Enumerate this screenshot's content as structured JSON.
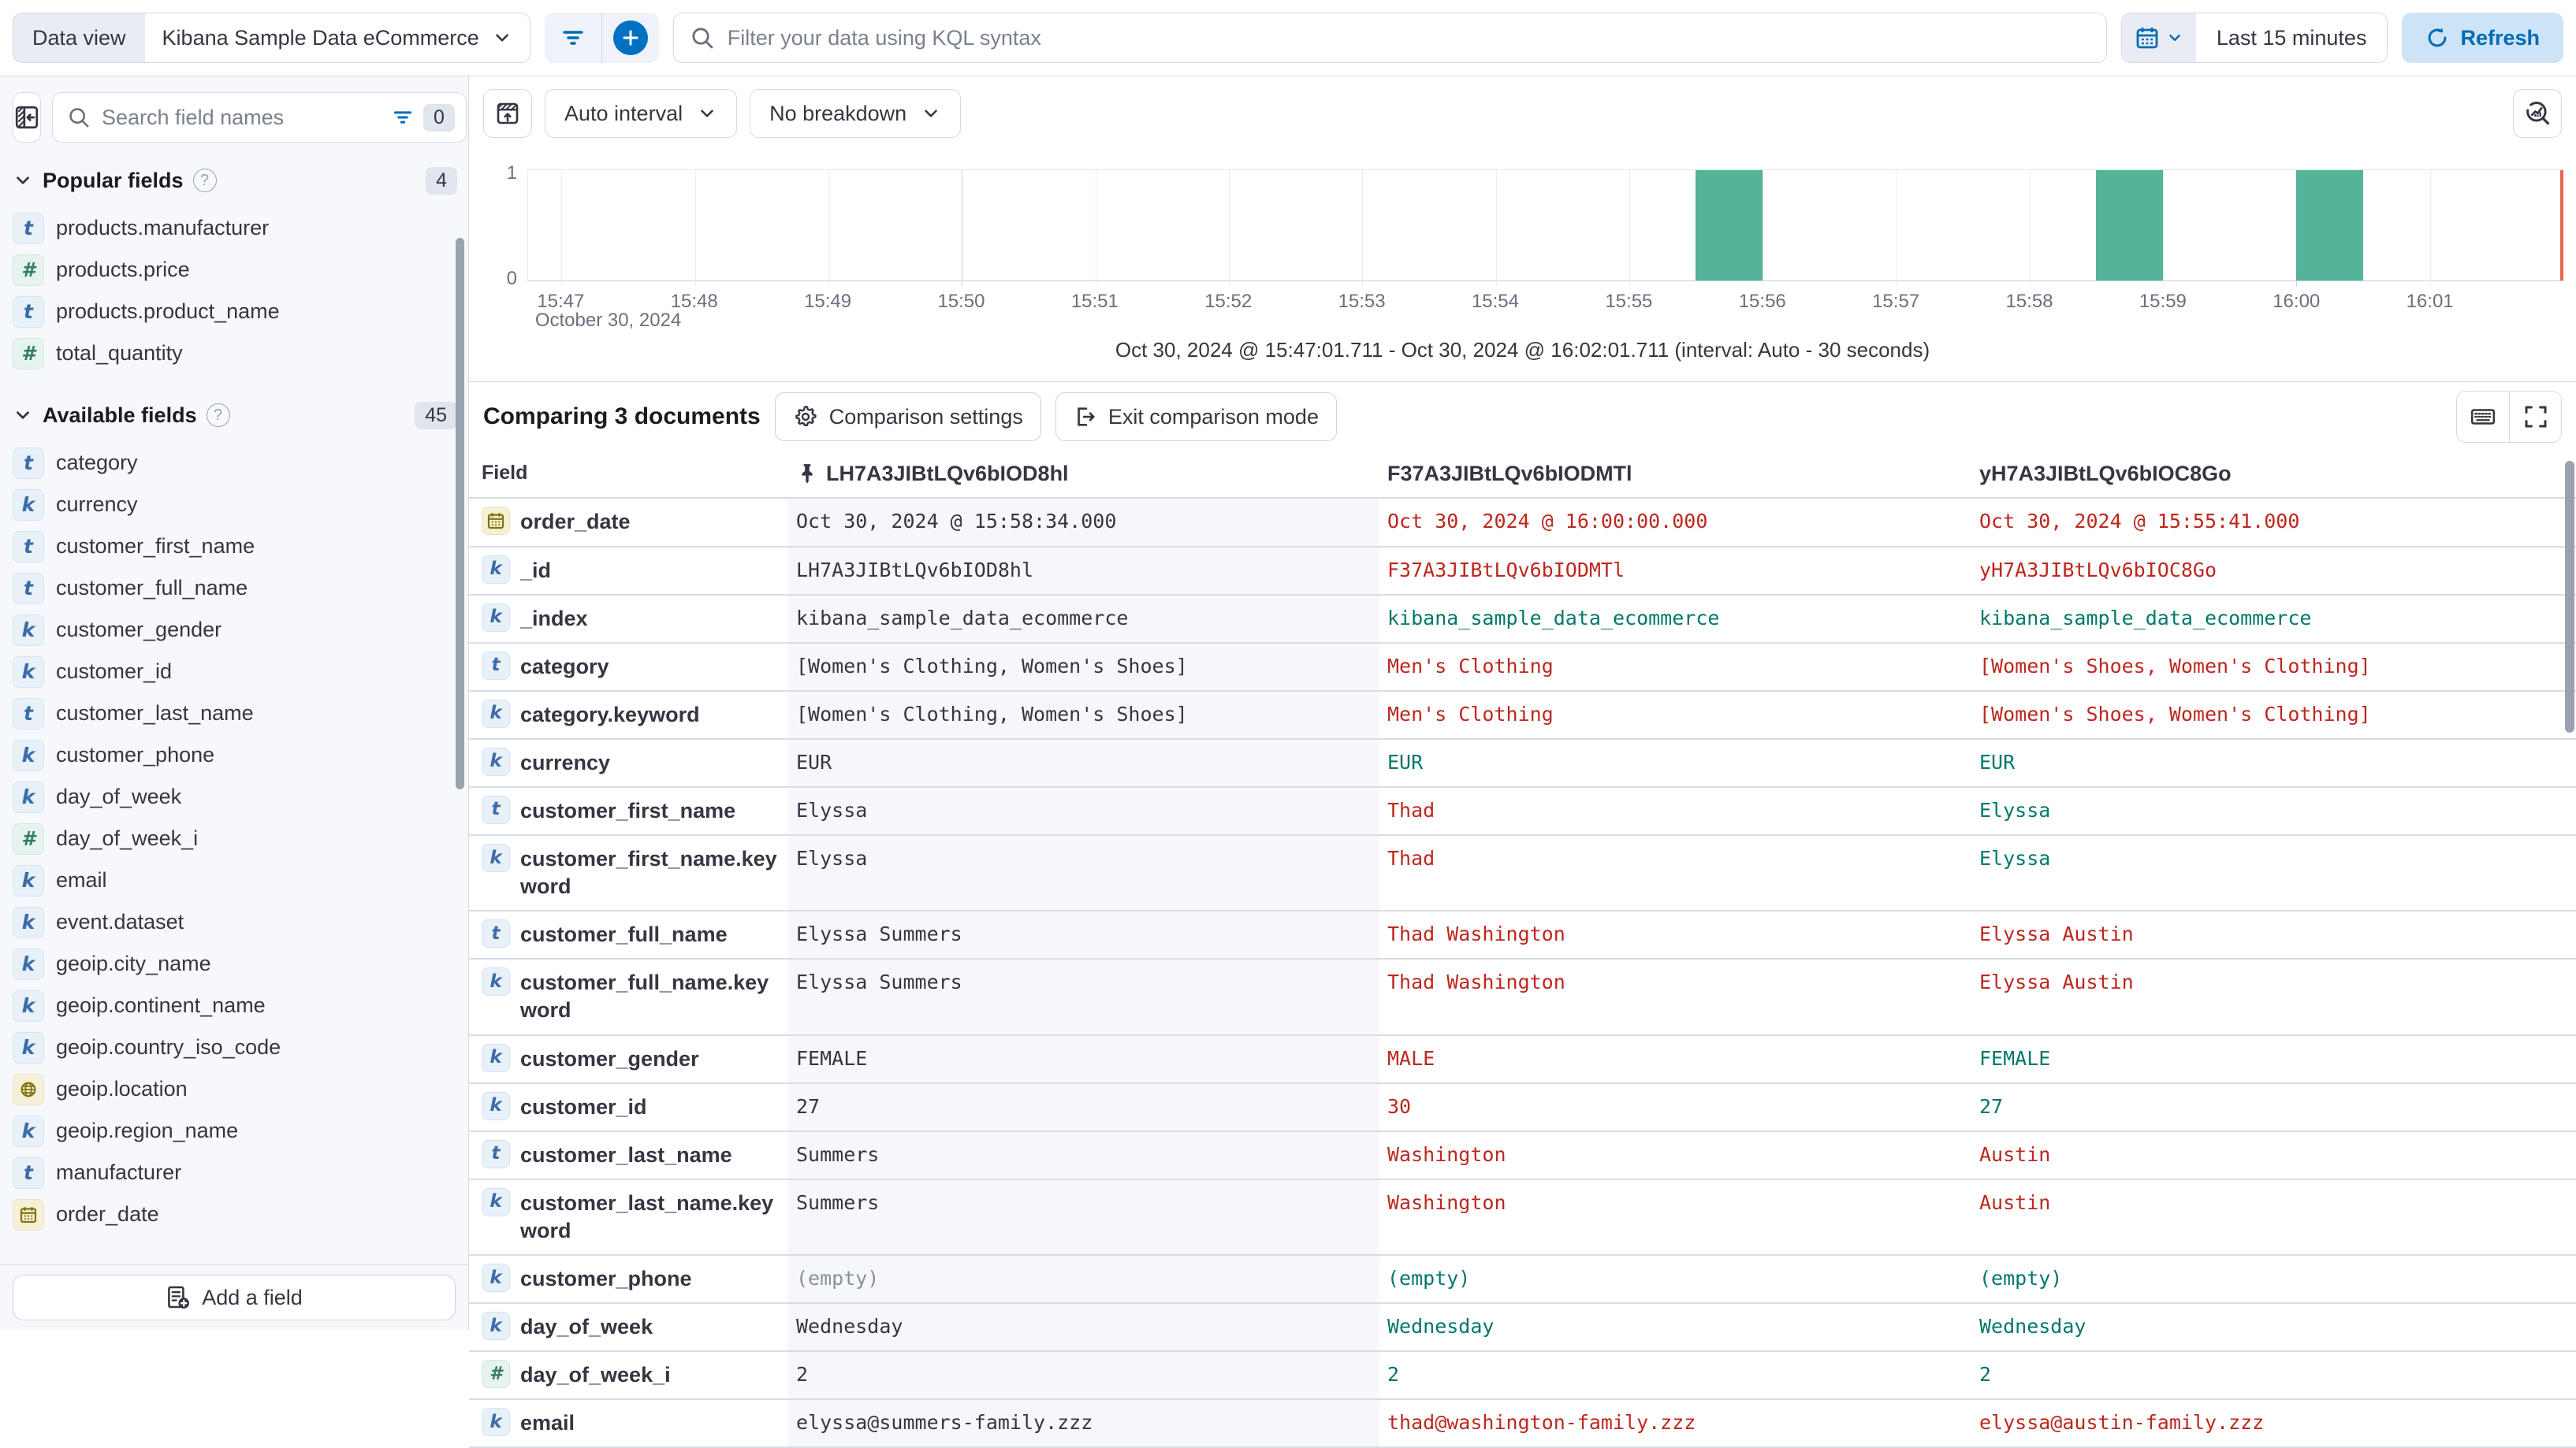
{
  "colors": {
    "accent": "#0071C2",
    "bar": "#54B399",
    "diff_text": "#BD271E",
    "match_text": "#007867",
    "now_marker": "#E7664C"
  },
  "top_bar": {
    "data_view_label": "Data view",
    "data_view_value": "Kibana Sample Data eCommerce",
    "kql_placeholder": "Filter your data using KQL syntax",
    "time_range": "Last 15 minutes",
    "refresh_label": "Refresh"
  },
  "sidebar": {
    "search_placeholder": "Search field names",
    "filter_count": "0",
    "popular": {
      "title": "Popular fields",
      "count": "4",
      "items": [
        {
          "type": "text",
          "label": "products.manufacturer"
        },
        {
          "type": "number",
          "label": "products.price"
        },
        {
          "type": "text",
          "label": "products.product_name"
        },
        {
          "type": "number",
          "label": "total_quantity"
        }
      ]
    },
    "available": {
      "title": "Available fields",
      "count": "45",
      "items": [
        {
          "type": "text",
          "label": "category"
        },
        {
          "type": "keyword",
          "label": "currency"
        },
        {
          "type": "text",
          "label": "customer_first_name"
        },
        {
          "type": "text",
          "label": "customer_full_name"
        },
        {
          "type": "keyword",
          "label": "customer_gender"
        },
        {
          "type": "keyword",
          "label": "customer_id"
        },
        {
          "type": "text",
          "label": "customer_last_name"
        },
        {
          "type": "keyword",
          "label": "customer_phone"
        },
        {
          "type": "keyword",
          "label": "day_of_week"
        },
        {
          "type": "number",
          "label": "day_of_week_i"
        },
        {
          "type": "keyword",
          "label": "email"
        },
        {
          "type": "keyword",
          "label": "event.dataset"
        },
        {
          "type": "keyword",
          "label": "geoip.city_name"
        },
        {
          "type": "keyword",
          "label": "geoip.continent_name"
        },
        {
          "type": "keyword",
          "label": "geoip.country_iso_code"
        },
        {
          "type": "geo",
          "label": "geoip.location"
        },
        {
          "type": "keyword",
          "label": "geoip.region_name"
        },
        {
          "type": "text",
          "label": "manufacturer"
        },
        {
          "type": "date",
          "label": "order_date"
        }
      ]
    },
    "add_field_label": "Add a field"
  },
  "chart": {
    "interval_label": "Auto interval",
    "breakdown_label": "No breakdown"
  },
  "chart_data": {
    "type": "bar",
    "title": "",
    "xlabel": "",
    "ylabel": "",
    "ylim": [
      0,
      1
    ],
    "y_ticks": [
      "1",
      "0"
    ],
    "x_ticks": [
      "15:47",
      "15:48",
      "15:49",
      "15:50",
      "15:51",
      "15:52",
      "15:53",
      "15:54",
      "15:55",
      "15:56",
      "15:57",
      "15:58",
      "15:59",
      "16:00",
      "16:01"
    ],
    "x_context": "October 30, 2024",
    "axis_domain": [
      "15:46:45",
      "16:02:00"
    ],
    "major_gridlines": [
      "15:50",
      "16:00"
    ],
    "bucket_seconds": 30,
    "bars": [
      {
        "x": "15:55:30",
        "value": 1
      },
      {
        "x": "15:58:30",
        "value": 1
      },
      {
        "x": "16:00:00",
        "value": 1
      }
    ],
    "summary": "Oct 30, 2024 @ 15:47:01.711 - Oct 30, 2024 @ 16:02:01.711 (interval: Auto - 30 seconds)"
  },
  "comparison": {
    "title": "Comparing 3 documents",
    "settings_label": "Comparison settings",
    "exit_label": "Exit comparison mode"
  },
  "table": {
    "field_column_label": "Field",
    "doc_columns": [
      {
        "id": "LH7A3JIBtLQv6bIOD8hl",
        "pinned": true
      },
      {
        "id": "F37A3JIBtLQv6bIODMTl",
        "pinned": false
      },
      {
        "id": "yH7A3JIBtLQv6bIOC8Go",
        "pinned": false
      }
    ],
    "rows": [
      {
        "field": "order_date",
        "type": "date",
        "cells": [
          {
            "t": "Oct 30, 2024 @ 15:58:34.000",
            "c": "base"
          },
          {
            "t": "Oct 30, 2024 @ 16:00:00.000",
            "c": "diff"
          },
          {
            "t": "Oct 30, 2024 @ 15:55:41.000",
            "c": "diff"
          }
        ]
      },
      {
        "field": "_id",
        "type": "keyword",
        "cells": [
          {
            "t": "LH7A3JIBtLQv6bIOD8hl",
            "c": "base"
          },
          {
            "t": "F37A3JIBtLQv6bIODMTl",
            "c": "diff"
          },
          {
            "t": "yH7A3JIBtLQv6bIOC8Go",
            "c": "diff"
          }
        ]
      },
      {
        "field": "_index",
        "type": "keyword",
        "cells": [
          {
            "t": "kibana_sample_data_ecommerce",
            "c": "base"
          },
          {
            "t": "kibana_sample_data_ecommerce",
            "c": "same"
          },
          {
            "t": "kibana_sample_data_ecommerce",
            "c": "same"
          }
        ]
      },
      {
        "field": "category",
        "type": "text",
        "cells": [
          {
            "t": "[Women's Clothing, Women's Shoes]",
            "c": "base"
          },
          {
            "t": "Men's Clothing",
            "c": "diff"
          },
          {
            "t": "[Women's Shoes, Women's Clothing]",
            "c": "diff"
          }
        ]
      },
      {
        "field": "category.keyword",
        "type": "keyword",
        "cells": [
          {
            "t": "[Women's Clothing, Women's Shoes]",
            "c": "base"
          },
          {
            "t": "Men's Clothing",
            "c": "diff"
          },
          {
            "t": "[Women's Shoes, Women's Clothing]",
            "c": "diff"
          }
        ]
      },
      {
        "field": "currency",
        "type": "keyword",
        "cells": [
          {
            "t": "EUR",
            "c": "base"
          },
          {
            "t": "EUR",
            "c": "same"
          },
          {
            "t": "EUR",
            "c": "same"
          }
        ]
      },
      {
        "field": "customer_first_name",
        "type": "text",
        "cells": [
          {
            "t": "Elyssa",
            "c": "base"
          },
          {
            "t": "Thad",
            "c": "diff"
          },
          {
            "t": "Elyssa",
            "c": "same"
          }
        ]
      },
      {
        "field": "customer_first_name.keyword",
        "type": "keyword",
        "cells": [
          {
            "t": "Elyssa",
            "c": "base"
          },
          {
            "t": "Thad",
            "c": "diff"
          },
          {
            "t": "Elyssa",
            "c": "same"
          }
        ]
      },
      {
        "field": "customer_full_name",
        "type": "text",
        "cells": [
          {
            "t": "Elyssa Summers",
            "c": "base"
          },
          {
            "t": "Thad Washington",
            "c": "diff"
          },
          {
            "t": "Elyssa Austin",
            "c": "diff"
          }
        ]
      },
      {
        "field": "customer_full_name.keyword",
        "type": "keyword",
        "cells": [
          {
            "t": "Elyssa Summers",
            "c": "base"
          },
          {
            "t": "Thad Washington",
            "c": "diff"
          },
          {
            "t": "Elyssa Austin",
            "c": "diff"
          }
        ]
      },
      {
        "field": "customer_gender",
        "type": "keyword",
        "cells": [
          {
            "t": "FEMALE",
            "c": "base"
          },
          {
            "t": "MALE",
            "c": "diff"
          },
          {
            "t": "FEMALE",
            "c": "same"
          }
        ]
      },
      {
        "field": "customer_id",
        "type": "keyword",
        "cells": [
          {
            "t": "27",
            "c": "base"
          },
          {
            "t": "30",
            "c": "diff"
          },
          {
            "t": "27",
            "c": "same"
          }
        ]
      },
      {
        "field": "customer_last_name",
        "type": "text",
        "cells": [
          {
            "t": "Summers",
            "c": "base"
          },
          {
            "t": "Washington",
            "c": "diff"
          },
          {
            "t": "Austin",
            "c": "diff"
          }
        ]
      },
      {
        "field": "customer_last_name.keyword",
        "type": "keyword",
        "cells": [
          {
            "t": "Summers",
            "c": "base"
          },
          {
            "t": "Washington",
            "c": "diff"
          },
          {
            "t": "Austin",
            "c": "diff"
          }
        ]
      },
      {
        "field": "customer_phone",
        "type": "keyword",
        "cells": [
          {
            "t": "(empty)",
            "c": "muted"
          },
          {
            "t": "(empty)",
            "c": "same"
          },
          {
            "t": "(empty)",
            "c": "same"
          }
        ]
      },
      {
        "field": "day_of_week",
        "type": "keyword",
        "cells": [
          {
            "t": "Wednesday",
            "c": "base"
          },
          {
            "t": "Wednesday",
            "c": "same"
          },
          {
            "t": "Wednesday",
            "c": "same"
          }
        ]
      },
      {
        "field": "day_of_week_i",
        "type": "number",
        "cells": [
          {
            "t": "2",
            "c": "base"
          },
          {
            "t": "2",
            "c": "same"
          },
          {
            "t": "2",
            "c": "same"
          }
        ]
      },
      {
        "field": "email",
        "type": "keyword",
        "cells": [
          {
            "t": "elyssa@summers-family.zzz",
            "c": "base"
          },
          {
            "t": "thad@washington-family.zzz",
            "c": "diff"
          },
          {
            "t": "elyssa@austin-family.zzz",
            "c": "diff"
          }
        ]
      }
    ]
  }
}
